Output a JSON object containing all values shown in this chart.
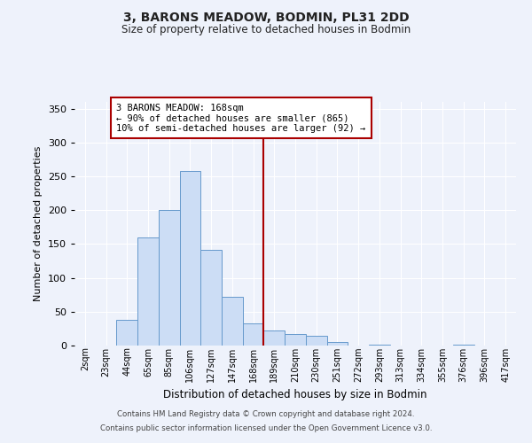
{
  "title": "3, BARONS MEADOW, BODMIN, PL31 2DD",
  "subtitle": "Size of property relative to detached houses in Bodmin",
  "xlabel": "Distribution of detached houses by size in Bodmin",
  "ylabel": "Number of detached properties",
  "bar_labels": [
    "2sqm",
    "23sqm",
    "44sqm",
    "65sqm",
    "85sqm",
    "106sqm",
    "127sqm",
    "147sqm",
    "168sqm",
    "189sqm",
    "210sqm",
    "230sqm",
    "251sqm",
    "272sqm",
    "293sqm",
    "313sqm",
    "334sqm",
    "355sqm",
    "376sqm",
    "396sqm",
    "417sqm"
  ],
  "bar_values": [
    0,
    0,
    38,
    160,
    200,
    258,
    142,
    72,
    33,
    22,
    17,
    14,
    5,
    0,
    1,
    0,
    0,
    0,
    1,
    0,
    0
  ],
  "bar_color": "#ccddf5",
  "bar_edge_color": "#6699cc",
  "vline_color": "#aa0000",
  "annotation_text": "3 BARONS MEADOW: 168sqm\n← 90% of detached houses are smaller (865)\n10% of semi-detached houses are larger (92) →",
  "annotation_box_edge": "#aa0000",
  "annotation_box_bg": "white",
  "ylim": [
    0,
    360
  ],
  "yticks": [
    0,
    50,
    100,
    150,
    200,
    250,
    300,
    350
  ],
  "footer1": "Contains HM Land Registry data © Crown copyright and database right 2024.",
  "footer2": "Contains public sector information licensed under the Open Government Licence v3.0.",
  "bg_color": "#eef2fb",
  "plot_bg_color": "#eef2fb"
}
